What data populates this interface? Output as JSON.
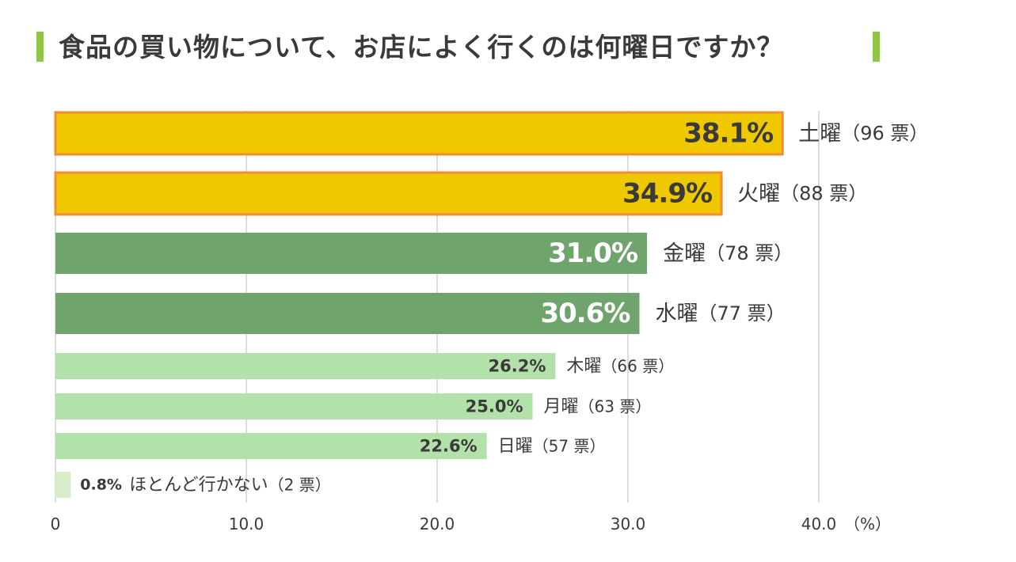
{
  "title": "食品の買い物について、お店によく行くのは何曜日ですか？",
  "colors": {
    "accent_bar": "#8dc63f",
    "top_fill": "#f0c800",
    "top_border": "#f28c38",
    "mid_fill": "#6fa56d",
    "low_fill": "#b2e2aa",
    "none_fill": "#d7ecc9",
    "grid": "#d0d0d0",
    "text": "#3a3a3a"
  },
  "chart_data": {
    "type": "bar",
    "orientation": "horizontal",
    "title": "食品の買い物について、お店によく行くのは何曜日ですか？",
    "xlabel": "",
    "xunit": "（%）",
    "xlim": [
      0,
      40
    ],
    "xticks": [
      "0",
      "10.0",
      "20.0",
      "30.0",
      "40.0"
    ],
    "grid": true,
    "bars": [
      {
        "category": "土曜",
        "value": 38.1,
        "value_label": "38.1%",
        "votes_label": "（96 票）",
        "tier": "top"
      },
      {
        "category": "火曜",
        "value": 34.9,
        "value_label": "34.9%",
        "votes_label": "（88 票）",
        "tier": "top"
      },
      {
        "category": "金曜",
        "value": 31.0,
        "value_label": "31.0%",
        "votes_label": "（78 票）",
        "tier": "mid"
      },
      {
        "category": "水曜",
        "value": 30.6,
        "value_label": "30.6%",
        "votes_label": "（77 票）",
        "tier": "mid"
      },
      {
        "category": "木曜",
        "value": 26.2,
        "value_label": "26.2%",
        "votes_label": "（66 票）",
        "tier": "low"
      },
      {
        "category": "月曜",
        "value": 25.0,
        "value_label": "25.0%",
        "votes_label": "（63 票）",
        "tier": "low"
      },
      {
        "category": "日曜",
        "value": 22.6,
        "value_label": "22.6%",
        "votes_label": "（57 票）",
        "tier": "low"
      },
      {
        "category": "ほとんど行かない",
        "value": 0.8,
        "value_label": "0.8%",
        "votes_label": "（2 票）",
        "tier": "none"
      }
    ]
  }
}
